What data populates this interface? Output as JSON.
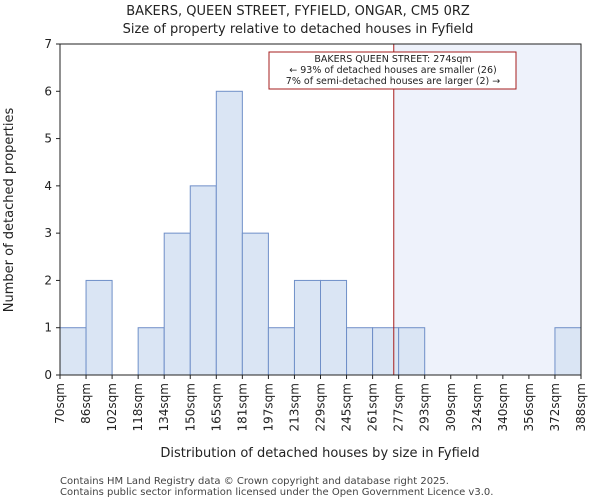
{
  "chart_data": {
    "type": "bar",
    "title": "BAKERS, QUEEN STREET, FYFIELD, ONGAR, CM5 0RZ",
    "subtitle": "Size of property relative to detached houses in Fyfield",
    "xlabel": "Distribution of detached houses by size in Fyfield",
    "ylabel": "Number of detached properties",
    "bin_edges": [
      70,
      86,
      102,
      118,
      134,
      150,
      165,
      181,
      197,
      213,
      229,
      245,
      261,
      277,
      293,
      309,
      324,
      340,
      356,
      372,
      388
    ],
    "tick_labels": [
      "70sqm",
      "86sqm",
      "102sqm",
      "118sqm",
      "134sqm",
      "150sqm",
      "165sqm",
      "181sqm",
      "197sqm",
      "213sqm",
      "229sqm",
      "245sqm",
      "261sqm",
      "277sqm",
      "293sqm",
      "309sqm",
      "324sqm",
      "340sqm",
      "356sqm",
      "372sqm",
      "388sqm"
    ],
    "values": [
      1,
      2,
      0,
      1,
      3,
      4,
      6,
      3,
      1,
      2,
      2,
      1,
      1,
      1,
      0,
      0,
      0,
      0,
      0,
      1
    ],
    "ylim": [
      0,
      7
    ],
    "yticks": [
      0,
      1,
      2,
      3,
      4,
      5,
      6,
      7
    ],
    "property_size": 274,
    "annotation": {
      "lines": [
        "BAKERS QUEEN STREET: 274sqm",
        "← 93% of detached houses are smaller (26)",
        "7% of semi-detached houses are larger (2) →"
      ]
    },
    "colors": {
      "bar_fill": "#dae5f4",
      "bar_fill_right": "#dae5f4",
      "bar_edge": "#6f8fc8",
      "marker": "#a61c1c",
      "shade": "#eef2fb"
    }
  },
  "footer": {
    "line1": "Contains HM Land Registry data © Crown copyright and database right 2025.",
    "line2": "Contains public sector information licensed under the Open Government Licence v3.0."
  }
}
